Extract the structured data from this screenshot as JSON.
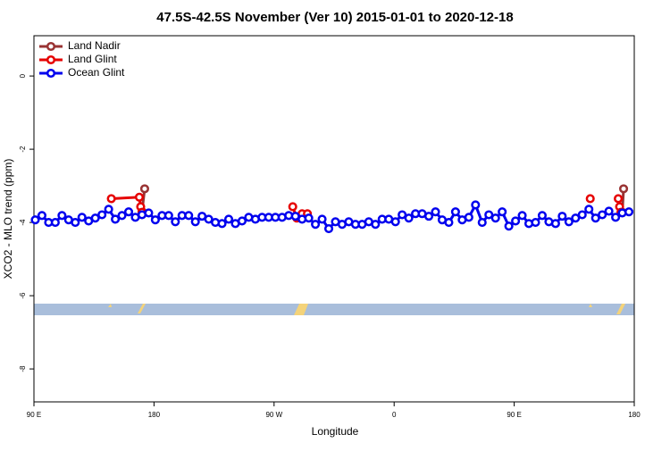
{
  "chart_data": {
    "type": "line",
    "title": "47.5S-42.5S November (Ver 10)   2015-01-01 to 2020-12-18",
    "x_label": "Longitude",
    "y_label": "XCO2 - MLO trend (ppm)",
    "xlim": [
      90,
      540
    ],
    "ylim": [
      -8.9,
      1.1
    ],
    "xticks": [
      {
        "value": 90,
        "label": "90 E"
      },
      {
        "value": 180,
        "label": "180"
      },
      {
        "value": 270,
        "label": "90 W"
      },
      {
        "value": 360,
        "label": "0"
      },
      {
        "value": 450,
        "label": "90 E"
      },
      {
        "value": 540,
        "label": "180"
      }
    ],
    "yticks": [
      0,
      -2,
      -4,
      -6,
      -8
    ],
    "legend": "top-left",
    "series": [
      {
        "name": "Land Nadir",
        "color": "#993333",
        "x": [
          171,
          173,
          350,
          531,
          532
        ],
        "values": [
          -3.7,
          -3.08,
          null,
          -3.72,
          -3.08
        ]
      },
      {
        "name": "Land Glint",
        "color": "#e60000",
        "x": [
          148,
          169,
          170,
          171,
          230,
          284,
          287,
          291,
          295,
          400,
          507,
          520,
          528,
          529,
          530
        ],
        "values": [
          -3.35,
          -3.31,
          -3.57,
          -3.72,
          null,
          -3.57,
          -3.88,
          -3.76,
          -3.76,
          null,
          -3.35,
          null,
          -3.35,
          -3.57,
          -3.72
        ]
      },
      {
        "name": "Ocean Glint",
        "color": "#0000ee",
        "x": [
          91,
          96,
          101,
          106,
          111,
          116,
          121,
          126,
          131,
          136,
          141,
          146,
          151,
          156,
          161,
          166,
          171,
          176,
          181,
          186,
          191,
          196,
          201,
          206,
          211,
          216,
          221,
          226,
          231,
          236,
          241,
          246,
          251,
          256,
          261,
          266,
          271,
          276,
          281,
          286,
          291,
          296,
          301,
          306,
          311,
          316,
          321,
          326,
          331,
          336,
          341,
          346,
          351,
          356,
          361,
          366,
          371,
          376,
          381,
          386,
          391,
          396,
          401,
          406,
          411,
          416,
          421,
          426,
          431,
          436,
          441,
          446,
          451,
          456,
          461,
          466,
          471,
          476,
          481,
          486,
          491,
          496,
          501,
          506,
          511,
          516,
          521,
          526,
          531,
          536
        ],
        "values": [
          -3.93,
          -3.81,
          -4.0,
          -4.0,
          -3.81,
          -3.93,
          -4.0,
          -3.86,
          -3.96,
          -3.88,
          -3.79,
          -3.64,
          -3.91,
          -3.81,
          -3.71,
          -3.86,
          -3.79,
          -3.74,
          -3.93,
          -3.81,
          -3.81,
          -3.98,
          -3.81,
          -3.81,
          -3.98,
          -3.83,
          -3.91,
          -4.0,
          -4.03,
          -3.91,
          -4.03,
          -3.96,
          -3.86,
          -3.91,
          -3.86,
          -3.86,
          -3.86,
          -3.86,
          -3.81,
          -3.83,
          -3.91,
          -3.88,
          -4.05,
          -3.91,
          -4.17,
          -3.98,
          -4.05,
          -3.98,
          -4.05,
          -4.05,
          -3.98,
          -4.05,
          -3.91,
          -3.91,
          -3.98,
          -3.79,
          -3.88,
          -3.76,
          -3.76,
          -3.83,
          -3.71,
          -3.93,
          -4.0,
          -3.71,
          -3.93,
          -3.86,
          -3.52,
          -4.0,
          -3.79,
          -3.88,
          -3.71,
          -4.1,
          -3.96,
          -3.81,
          -4.03,
          -4.0,
          -3.81,
          -3.98,
          -4.03,
          -3.83,
          -3.98,
          -3.88,
          -3.79,
          -3.64,
          -3.88,
          -3.79,
          -3.69,
          -3.86,
          -3.74,
          -3.71
        ]
      }
    ]
  }
}
